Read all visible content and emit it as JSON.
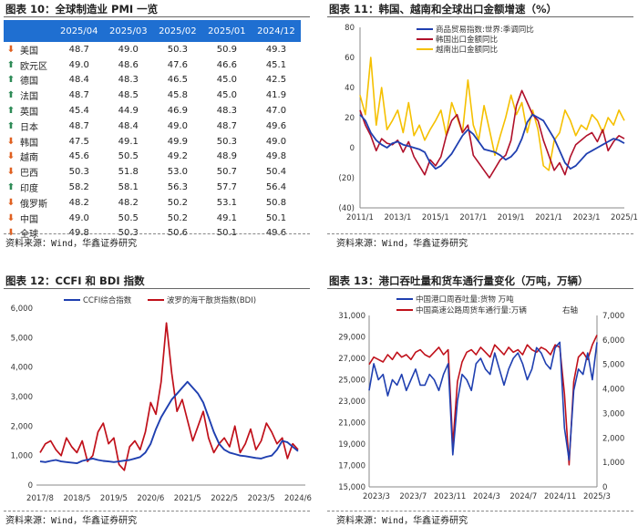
{
  "panels": {
    "p10": {
      "title": "图表 10：全球制造业 PMI 一览",
      "source": "资料来源：Wind，华鑫证券研究",
      "headers": [
        "",
        "2025/04",
        "2025/03",
        "2025/02",
        "2025/01",
        "2024/12"
      ],
      "rows": [
        {
          "dir": "down",
          "country": "美国",
          "values": [
            "48.7",
            "49.0",
            "50.3",
            "50.9",
            "49.3"
          ]
        },
        {
          "dir": "up",
          "country": "欧元区",
          "values": [
            "49.0",
            "48.6",
            "47.6",
            "46.6",
            "45.1"
          ]
        },
        {
          "dir": "up",
          "country": "德国",
          "values": [
            "48.4",
            "48.3",
            "46.5",
            "45.0",
            "42.5"
          ]
        },
        {
          "dir": "up",
          "country": "法国",
          "values": [
            "48.7",
            "48.5",
            "45.8",
            "45.0",
            "41.9"
          ]
        },
        {
          "dir": "up",
          "country": "英国",
          "values": [
            "45.4",
            "44.9",
            "46.9",
            "48.3",
            "47.0"
          ]
        },
        {
          "dir": "up",
          "country": "日本",
          "values": [
            "48.7",
            "48.4",
            "49.0",
            "48.7",
            "49.6"
          ]
        },
        {
          "dir": "down",
          "country": "韩国",
          "values": [
            "47.5",
            "49.1",
            "49.9",
            "50.3",
            "49.0"
          ]
        },
        {
          "dir": "down",
          "country": "越南",
          "values": [
            "45.6",
            "50.5",
            "49.2",
            "48.9",
            "49.8"
          ]
        },
        {
          "dir": "down",
          "country": "巴西",
          "values": [
            "50.3",
            "51.8",
            "53.0",
            "50.7",
            "50.4"
          ]
        },
        {
          "dir": "up",
          "country": "印度",
          "values": [
            "58.2",
            "58.1",
            "56.3",
            "57.7",
            "56.4"
          ]
        },
        {
          "dir": "down",
          "country": "俄罗斯",
          "values": [
            "48.2",
            "48.2",
            "50.2",
            "53.1",
            "50.8"
          ]
        },
        {
          "dir": "down",
          "country": "中国",
          "values": [
            "49.0",
            "50.5",
            "50.2",
            "49.1",
            "50.1"
          ]
        },
        {
          "dir": "down",
          "country": "全球",
          "values": [
            "49.8",
            "50.3",
            "50.6",
            "50.1",
            "49.6"
          ]
        }
      ]
    },
    "p11": {
      "title": "图表 11：韩国、越南和全球出口金额增速（%）",
      "source": "资料来源：Wind，华鑫证券研究"
    },
    "p12": {
      "title": "图表 12：CCFI 和 BDI 指数",
      "source": "资料来源：Wind，华鑫证券研究"
    },
    "p13": {
      "title": "图表 13：港口吞吐量和货车通行量变化（万吨，万辆）",
      "source": "资料来源：Wind，华鑫证券研究"
    }
  },
  "chart_data": [
    {
      "type": "line",
      "title": "韩国、越南和全球出口金额增速（%）",
      "ylim": [
        -40,
        80
      ],
      "yticks": [
        "80",
        "60",
        "40",
        "20",
        "0",
        "(20)",
        "(40)"
      ],
      "xticks": [
        "2011/1",
        "2013/1",
        "2015/1",
        "2017/1",
        "2019/1",
        "2021/1",
        "2023/1",
        "2025/1"
      ],
      "colors": {
        "global": "#1f3fb0",
        "korea": "#b0102a",
        "vietnam": "#f5c000"
      },
      "series": [
        {
          "name": "商品贸易指数:世界:季调同比",
          "key": "global",
          "values": [
            22,
            18,
            10,
            5,
            2,
            0,
            3,
            4,
            2,
            1,
            0,
            -1,
            -3,
            -10,
            -14,
            -12,
            -8,
            -4,
            2,
            8,
            12,
            9,
            4,
            -1,
            -2,
            -3,
            -5,
            -8,
            -6,
            -2,
            6,
            17,
            22,
            20,
            18,
            12,
            6,
            -2,
            -10,
            -14,
            -12,
            -8,
            -4,
            -2,
            0,
            2,
            4,
            6,
            5,
            3
          ]
        },
        {
          "name": "韩国出口金额同比",
          "key": "korea",
          "values": [
            25,
            15,
            8,
            -2,
            6,
            3,
            2,
            5,
            -3,
            4,
            -6,
            -12,
            -18,
            -8,
            -12,
            -6,
            8,
            18,
            22,
            10,
            15,
            -5,
            -10,
            -15,
            -20,
            -14,
            -8,
            -5,
            5,
            28,
            38,
            30,
            22,
            18,
            5,
            -5,
            -15,
            -10,
            -18,
            -6,
            2,
            5,
            8,
            10,
            4,
            12,
            -2,
            4,
            8,
            6
          ]
        },
        {
          "name": "越南出口金额同比",
          "key": "vietnam",
          "values": [
            35,
            22,
            60,
            15,
            40,
            12,
            18,
            25,
            10,
            30,
            8,
            15,
            5,
            12,
            18,
            25,
            8,
            30,
            20,
            10,
            45,
            15,
            5,
            28,
            12,
            -5,
            8,
            20,
            35,
            22,
            30,
            10,
            25,
            12,
            -12,
            -15,
            5,
            10,
            25,
            18,
            8,
            15,
            12,
            22,
            18,
            10,
            20,
            15,
            25,
            18
          ]
        }
      ]
    },
    {
      "type": "line",
      "title": "CCFI 和 BDI 指数",
      "ylim": [
        0,
        6000
      ],
      "yticks": [
        "6,000",
        "5,000",
        "4,000",
        "3,000",
        "2,000",
        "1,000",
        "0"
      ],
      "xticks": [
        "2017/8",
        "2018/5",
        "2019/5",
        "2020/6",
        "2021/5",
        "2022/5",
        "2023/5",
        "2024/6"
      ],
      "colors": {
        "ccfi": "#1f3fb0",
        "bdi": "#c0101a"
      },
      "series": [
        {
          "name": "CCFI综合指数",
          "key": "ccfi",
          "values": [
            800,
            780,
            820,
            850,
            800,
            780,
            760,
            740,
            820,
            860,
            900,
            850,
            820,
            800,
            780,
            800,
            830,
            850,
            900,
            950,
            1100,
            1400,
            1900,
            2300,
            2600,
            2900,
            3100,
            3300,
            3500,
            3300,
            3100,
            2800,
            2300,
            1800,
            1400,
            1200,
            1100,
            1050,
            1000,
            980,
            950,
            920,
            900,
            960,
            1000,
            1200,
            1500,
            1450,
            1300,
            1150
          ]
        },
        {
          "name": "波罗的海干散货指数(BDI)",
          "key": "bdi",
          "values": [
            1100,
            1400,
            1500,
            1200,
            1000,
            1600,
            1300,
            1100,
            1500,
            800,
            1000,
            1800,
            2100,
            1400,
            1600,
            700,
            500,
            1300,
            1500,
            1200,
            1800,
            2800,
            2400,
            3500,
            5500,
            3800,
            2500,
            2900,
            2200,
            1500,
            2000,
            2500,
            1600,
            1100,
            1400,
            1600,
            1300,
            2000,
            1100,
            1400,
            1900,
            1200,
            1500,
            2100,
            1800,
            1400,
            1600,
            900,
            1400,
            1200
          ]
        }
      ]
    },
    {
      "type": "line",
      "title": "港口吞吐量和货车通行量变化（万吨，万辆）",
      "ylim": [
        15000,
        31000
      ],
      "y2lim": [
        0,
        7000
      ],
      "yticks": [
        "31,000",
        "29,000",
        "27,000",
        "25,000",
        "23,000",
        "21,000",
        "19,000",
        "17,000",
        "15,000"
      ],
      "y2ticks": [
        "7,000",
        "6,000",
        "5,000",
        "4,000",
        "3,000",
        "2,000",
        "1,000",
        "0"
      ],
      "y2label": "右轴",
      "xticks": [
        "2023/3",
        "2023/7",
        "2023/11",
        "2024/3",
        "2024/7",
        "2024/11",
        "2025/3"
      ],
      "colors": {
        "port": "#1f3fb0",
        "truck": "#c0101a"
      },
      "series": [
        {
          "name": "中国港口周吞吐量:货物 万吨",
          "key": "port",
          "values": [
            24000,
            26500,
            25000,
            25500,
            23500,
            25000,
            24500,
            25500,
            24000,
            25000,
            26000,
            24500,
            24500,
            25500,
            25000,
            24000,
            25500,
            26500,
            18000,
            23000,
            25500,
            25000,
            24000,
            26500,
            27000,
            26000,
            25500,
            27500,
            26000,
            24500,
            26000,
            27000,
            27500,
            26500,
            25000,
            26000,
            28000,
            27500,
            26500,
            26000,
            28000,
            28500,
            20500,
            17500,
            24000,
            26000,
            25500,
            27500,
            25000,
            28500
          ]
        },
        {
          "name": "中国高速公路周货车通行量:万辆",
          "key": "truck",
          "values": [
            5000,
            5300,
            5200,
            5100,
            5400,
            5200,
            5500,
            5300,
            5400,
            5200,
            5500,
            5600,
            5400,
            5300,
            5500,
            5700,
            5400,
            5600,
            1700,
            4300,
            5100,
            5500,
            5600,
            5400,
            5700,
            5500,
            5300,
            5800,
            5600,
            5400,
            5700,
            5500,
            5600,
            5400,
            5800,
            5600,
            5500,
            5700,
            5600,
            5400,
            5800,
            5700,
            3800,
            900,
            4300,
            5300,
            5500,
            5200,
            5800,
            6200
          ]
        }
      ]
    }
  ]
}
